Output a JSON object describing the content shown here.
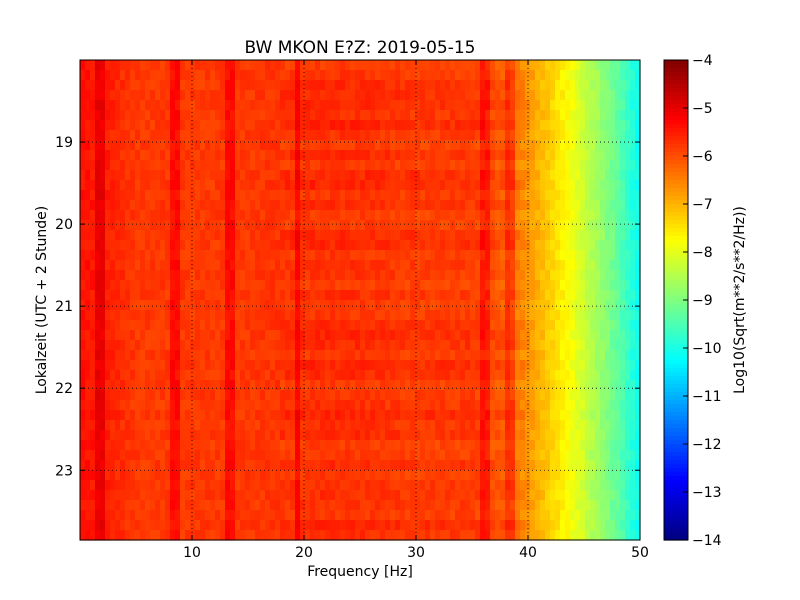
{
  "chart_data": {
    "type": "heatmap",
    "title": "BW MKON E?Z: 2019-05-15",
    "xlabel": "Frequency [Hz]",
    "ylabel": "Lokalzeit (UTC + 2 Stunde)",
    "xlim": [
      0,
      50
    ],
    "ylim": [
      18.0,
      23.85
    ],
    "y_inverted": true,
    "x_ticks": [
      10,
      20,
      30,
      40,
      50
    ],
    "y_ticks": [
      19,
      20,
      21,
      22,
      23
    ],
    "colorbar": {
      "label": "Log10(Sqrt(m**2/s**2/Hz))",
      "range": [
        -14,
        -4
      ],
      "ticks": [
        -4,
        -5,
        -6,
        -7,
        -8,
        -9,
        -10,
        -11,
        -12,
        -13,
        -14
      ],
      "colormap": "jet"
    },
    "spectrum_profile": {
      "frequency_hz": [
        0,
        2,
        5,
        10,
        15,
        20,
        25,
        30,
        35,
        38,
        40,
        42,
        44,
        46,
        48,
        50
      ],
      "log10_amplitude": [
        -5.4,
        -5.5,
        -5.8,
        -5.8,
        -5.8,
        -5.7,
        -5.7,
        -5.8,
        -5.8,
        -6.1,
        -6.7,
        -7.3,
        -7.9,
        -8.6,
        -9.3,
        -10.2
      ]
    },
    "persistent_lines_hz": [
      1.9,
      8.5,
      13.5,
      19.5,
      36.2,
      38.5
    ]
  }
}
